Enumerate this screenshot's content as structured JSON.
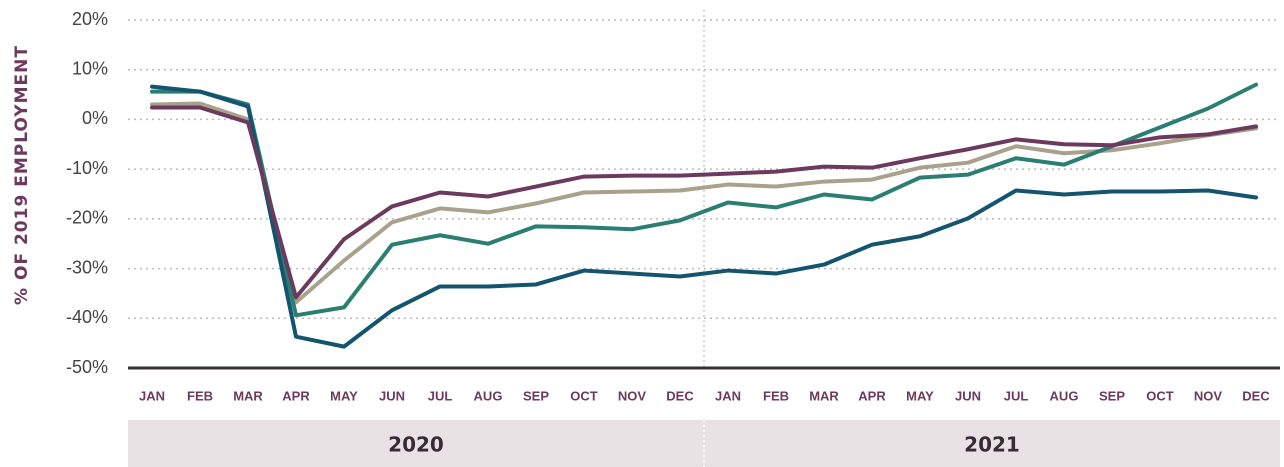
{
  "chart_data": {
    "type": "line",
    "y_label": "% OF 2019 EMPLOYMENT",
    "categories": [
      "JAN",
      "FEB",
      "MAR",
      "APR",
      "MAY",
      "JUN",
      "JUL",
      "AUG",
      "SEP",
      "OCT",
      "NOV",
      "DEC",
      "JAN",
      "FEB",
      "MAR",
      "APR",
      "MAY",
      "JUN",
      "JUL",
      "AUG",
      "SEP",
      "OCT",
      "NOV",
      "DEC"
    ],
    "years": [
      "2020",
      "2021"
    ],
    "ylim": [
      -50,
      20
    ],
    "yticks": [
      {
        "value": 20,
        "label": "20%"
      },
      {
        "value": 10,
        "label": "10%"
      },
      {
        "value": 0,
        "label": "0%"
      },
      {
        "value": -10,
        "label": "-10%"
      },
      {
        "value": -20,
        "label": "-20%"
      },
      {
        "value": -30,
        "label": "-30%"
      },
      {
        "value": -40,
        "label": "-40%"
      },
      {
        "value": -50,
        "label": "-50%"
      }
    ],
    "grid": true,
    "series": [
      {
        "color": "#a8a18c",
        "values": [
          3,
          3.2,
          0,
          -36.8,
          -28.4,
          -20.7,
          -17.9,
          -18.7,
          -16.9,
          -14.7,
          -14.5,
          -14.3,
          -13.1,
          -13.5,
          -12.5,
          -12.1,
          -9.7,
          -8.7,
          -5.4,
          -6.8,
          -6.2,
          -4.8,
          -3.2,
          -1.8
        ]
      },
      {
        "color": "#2a7f72",
        "values": [
          5.6,
          5.6,
          3,
          -39.4,
          -37.8,
          -25.2,
          -23.3,
          -25,
          -21.5,
          -21.7,
          -22.1,
          -20.3,
          -16.7,
          -17.7,
          -15.1,
          -16.1,
          -11.7,
          -11.1,
          -7.8,
          -9.1,
          -5.4,
          -1.6,
          2.2,
          7
        ]
      },
      {
        "color": "#14546e",
        "values": [
          6.6,
          5.6,
          2.6,
          -43.7,
          -45.7,
          -38.4,
          -33.6,
          -33.6,
          -33.2,
          -30.4,
          -31,
          -31.6,
          -30.4,
          -31,
          -29.2,
          -25.2,
          -23.5,
          -19.9,
          -14.3,
          -15.1,
          -14.5,
          -14.5,
          -14.3,
          -15.7
        ]
      },
      {
        "color": "#6b3a5e",
        "values": [
          2.4,
          2.4,
          -0.6,
          -35.8,
          -24.1,
          -17.5,
          -14.7,
          -15.5,
          -13.5,
          -11.5,
          -11.3,
          -11.3,
          -10.9,
          -10.5,
          -9.5,
          -9.7,
          -7.8,
          -6,
          -4,
          -5,
          -5.2,
          -3.6,
          -3,
          -1.4
        ]
      }
    ]
  }
}
